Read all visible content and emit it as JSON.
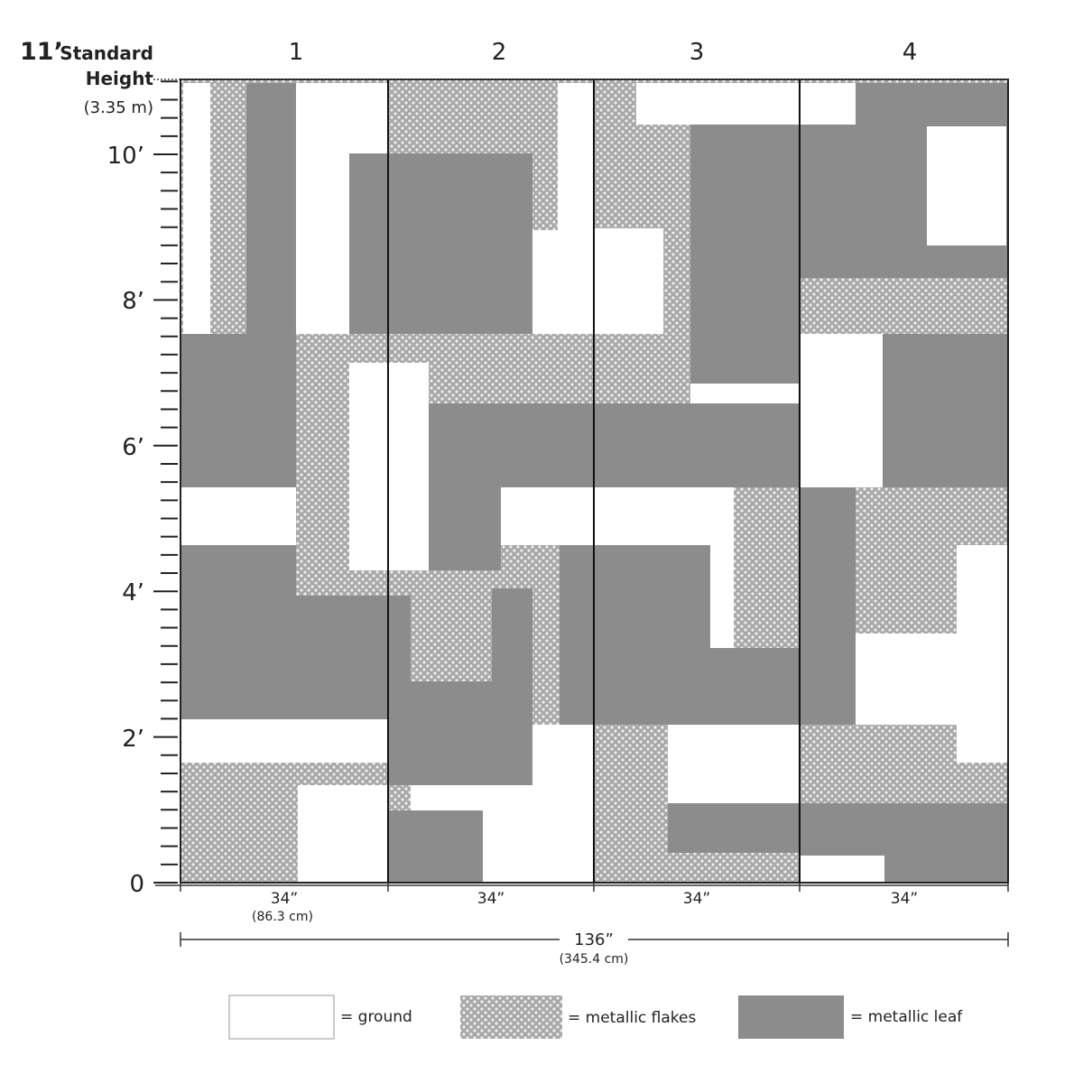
{
  "header": {
    "height_feet": "11’",
    "height_word1": "Standard",
    "height_word2": "Height",
    "height_metric": "(3.35 m)"
  },
  "panels": [
    "1",
    "2",
    "3",
    "4"
  ],
  "height_scale": [
    "10’",
    "8’",
    "6’",
    "4’",
    "2’",
    "0"
  ],
  "panel_widths": [
    "34”",
    "34”",
    "34”",
    "34”"
  ],
  "panel_width_metric": "(86.3 cm)",
  "total_width": "136”",
  "total_width_metric": "(345.4 cm)",
  "legend": [
    {
      "label": "= ground"
    },
    {
      "label": "= metallic flakes"
    },
    {
      "label": "= metallic leaf"
    }
  ]
}
